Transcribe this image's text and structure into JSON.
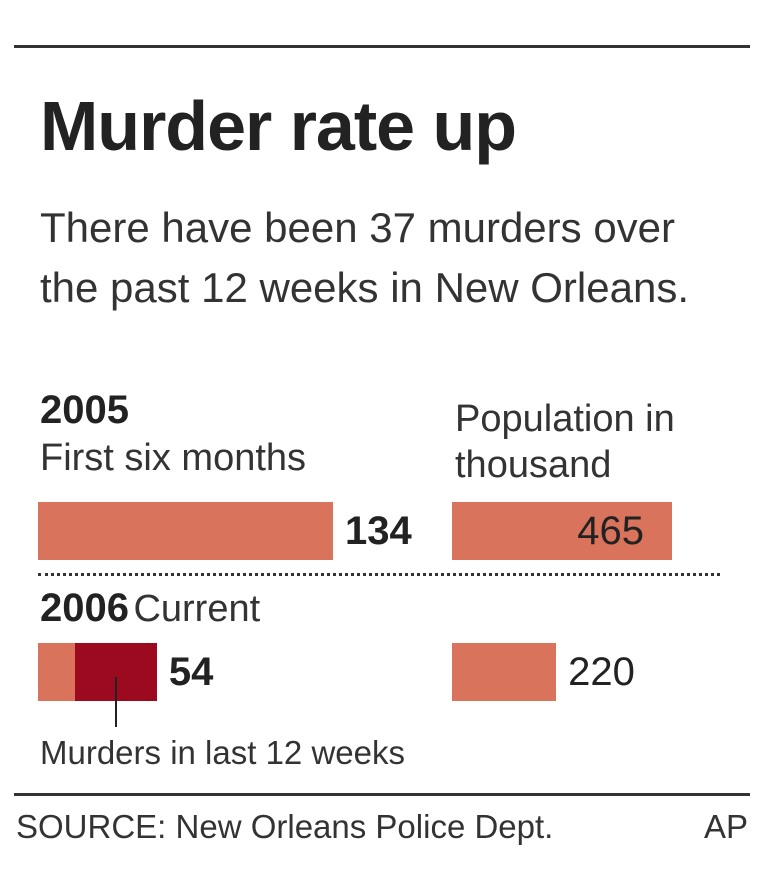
{
  "chart_data": {
    "type": "bar",
    "title": "Murder rate up",
    "subtitle": "There have been 37 murders over the past 12 weeks in New Orleans.",
    "categories": [
      "2005",
      "2006"
    ],
    "category_notes": [
      "First six months",
      "Current"
    ],
    "series": [
      {
        "color": "#d9735c",
        "values": [
          134,
          54
        ]
      },
      {
        "name": "Population in thousand",
        "color": "#d9735c",
        "values": [
          465,
          220
        ]
      }
    ],
    "highlight": {
      "label": "Murders in last 12 weeks",
      "value": 37,
      "category": 1,
      "color": "#9b0a1e"
    },
    "source": "SOURCE: New Orleans Police Dept.",
    "credit": "AP"
  }
}
